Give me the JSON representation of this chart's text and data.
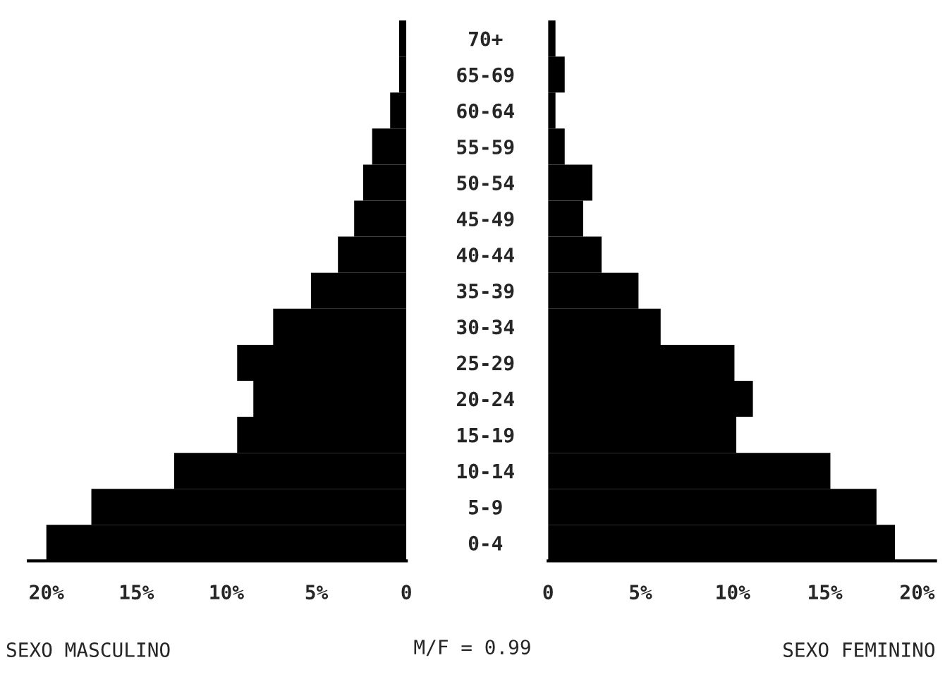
{
  "chart_data": [
    {
      "type": "bar",
      "orientation": "horizontal",
      "values": [
        0.4,
        0.4,
        0.9,
        1.9,
        2.4,
        2.9,
        3.8,
        5.3,
        7.4,
        9.4,
        8.5,
        9.4,
        12.9,
        17.5,
        20.0
      ],
      "color": "#000000",
      "xlim": [
        21,
        0
      ],
      "xticks": [
        {
          "value": 20,
          "label": "20%"
        },
        {
          "value": 15,
          "label": "15%"
        },
        {
          "value": 10,
          "label": "10%"
        },
        {
          "value": 5,
          "label": "5%"
        },
        0
      ],
      "xlabel": "SEXO MASCULINO",
      "tick_labels": "x",
      "annotations": [
        "M/F = 0.99"
      ]
    },
    {
      "type": "bar",
      "orientation": "horizontal",
      "categories": [
        "70+",
        "65-69",
        "60-64",
        "55-59",
        "50-54",
        "45-49",
        "40-44",
        "35-39",
        "30-34",
        "25-29",
        "20-24",
        "15-19",
        "10-14",
        "5-9",
        "0-4"
      ],
      "values": [
        0.4,
        0.9,
        0.4,
        0.9,
        2.4,
        1.9,
        2.9,
        4.9,
        6.1,
        10.1,
        11.1,
        10.2,
        15.3,
        17.8,
        18.8
      ],
      "color": "#000000",
      "xlim": [
        0,
        21
      ],
      "xticks": [
        0,
        {
          "value": 5,
          "label": "5%"
        },
        {
          "value": 10,
          "label": "10%"
        },
        {
          "value": 15,
          "label": "15%"
        },
        {
          "value": 20,
          "label": "20%"
        }
      ],
      "xlabel": "SEXO FEMININO"
    }
  ]
}
